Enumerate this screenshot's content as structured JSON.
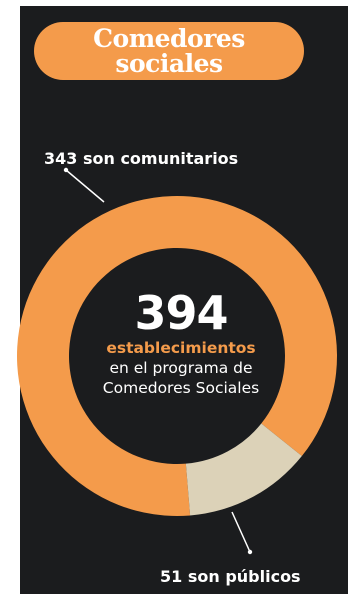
{
  "title": {
    "line1": "Comedores",
    "line2": "sociales"
  },
  "colors": {
    "accent": "#f49b4b",
    "secondary": "#dcd2b8",
    "background": "#1b1c1e"
  },
  "center": {
    "total": "394",
    "unit": "establecimientos",
    "line1": "en el programa de",
    "line2": "Comedores Sociales"
  },
  "chart_data": {
    "type": "pie",
    "variant": "donut",
    "slices": [
      {
        "label": "343 son comunitarios",
        "value": 343,
        "color": "#f49b4b"
      },
      {
        "label": "51 son públicos",
        "value": 51,
        "color": "#dcd2b8"
      }
    ],
    "total": 394
  }
}
